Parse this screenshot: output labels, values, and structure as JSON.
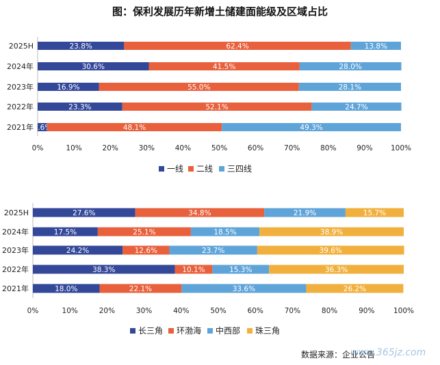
{
  "title": "图：保利发展历年新增土储建面能级及区域占比",
  "source": "数据来源：企业公告",
  "watermark": "www.365jz.com",
  "colors": {
    "navy": "#34489a",
    "orange": "#e8603c",
    "lightblue": "#5fa4d9",
    "gold": "#f1b03d"
  },
  "chart_data": [
    {
      "type": "bar",
      "orientation": "horizontal",
      "stacked": true,
      "normalized": true,
      "categories": [
        "2025H",
        "2024年",
        "2023年",
        "2022年",
        "2021年"
      ],
      "series": [
        {
          "name": "一线",
          "color": "#34489a",
          "values": [
            23.8,
            30.6,
            16.9,
            23.3,
            2.6
          ]
        },
        {
          "name": "二线",
          "color": "#e8603c",
          "values": [
            62.4,
            41.5,
            55.0,
            52.1,
            48.1
          ]
        },
        {
          "name": "三四线",
          "color": "#5fa4d9",
          "values": [
            13.8,
            28.0,
            28.1,
            24.7,
            49.3
          ]
        }
      ],
      "xticks": [
        "0%",
        "10%",
        "20%",
        "30%",
        "40%",
        "50%",
        "60%",
        "70%",
        "80%",
        "90%",
        "100%"
      ],
      "xlim": [
        0,
        100
      ],
      "legend_position": "bottom"
    },
    {
      "type": "bar",
      "orientation": "horizontal",
      "stacked": true,
      "normalized": true,
      "categories": [
        "2025H",
        "2024年",
        "2023年",
        "2022年",
        "2021年"
      ],
      "series": [
        {
          "name": "长三角",
          "color": "#34489a",
          "values": [
            27.6,
            17.5,
            24.2,
            38.3,
            18.0
          ]
        },
        {
          "name": "环渤海",
          "color": "#e8603c",
          "values": [
            34.8,
            25.1,
            12.6,
            10.1,
            22.1
          ]
        },
        {
          "name": "中西部",
          "color": "#5fa4d9",
          "values": [
            21.9,
            18.5,
            23.7,
            15.3,
            33.6
          ]
        },
        {
          "name": "珠三角",
          "color": "#f1b03d",
          "values": [
            15.7,
            38.9,
            39.6,
            36.3,
            26.2
          ]
        }
      ],
      "xticks": [
        "0%",
        "10%",
        "20%",
        "30%",
        "40%",
        "50%",
        "60%",
        "70%",
        "80%",
        "90%",
        "100%"
      ],
      "xlim": [
        0,
        100
      ],
      "legend_position": "bottom"
    }
  ]
}
